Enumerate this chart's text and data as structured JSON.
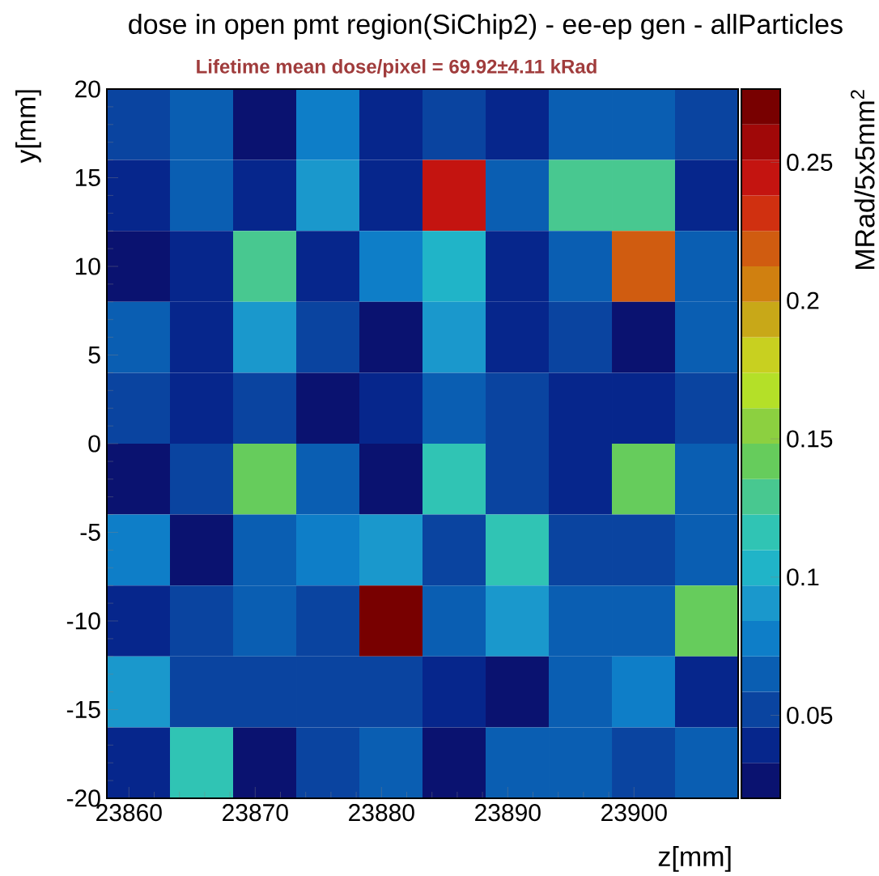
{
  "chart_data": {
    "type": "heatmap",
    "title": "dose in open pmt region(SiChip2) - ee-ep gen - allParticles",
    "subtitle": "Lifetime mean dose/pixel = 69.92±4.11 kRad",
    "xlabel": "z[mm]",
    "ylabel": "y[mm]",
    "clabel": "MRad/5x5mm$^{2}$",
    "x": [
      23860.75,
      23865.75,
      23870.75,
      23875.75,
      23880.75,
      23885.75,
      23890.75,
      23895.75,
      23900.75,
      23905.75
    ],
    "y": [
      18,
      14,
      10,
      6,
      2,
      -2,
      -6,
      -10,
      -14,
      -18
    ],
    "xlim": [
      23858.25,
      23908.25
    ],
    "ylim": [
      -20,
      20
    ],
    "xticks": [
      23860,
      23870,
      23880,
      23890,
      23900
    ],
    "yticks": [
      -20,
      -15,
      -10,
      -5,
      0,
      5,
      10,
      15,
      20
    ],
    "clim": [
      0.02,
      0.2765
    ],
    "cticks": [
      0.05,
      0.1,
      0.15,
      0.2,
      0.25
    ],
    "cells": [
      [
        0.052,
        0.065,
        0.026,
        0.078,
        0.039,
        0.052,
        0.039,
        0.065,
        0.065,
        0.052
      ],
      [
        0.039,
        0.065,
        0.039,
        0.091,
        0.039,
        0.244,
        0.065,
        0.129,
        0.129,
        0.039
      ],
      [
        0.026,
        0.039,
        0.129,
        0.039,
        0.078,
        0.103,
        0.039,
        0.065,
        0.219,
        0.065
      ],
      [
        0.065,
        0.039,
        0.091,
        0.052,
        0.026,
        0.091,
        0.039,
        0.052,
        0.026,
        0.065
      ],
      [
        0.052,
        0.039,
        0.052,
        0.026,
        0.039,
        0.065,
        0.052,
        0.039,
        0.039,
        0.052
      ],
      [
        0.026,
        0.052,
        0.142,
        0.065,
        0.026,
        0.116,
        0.052,
        0.039,
        0.142,
        0.065
      ],
      [
        0.078,
        0.026,
        0.065,
        0.078,
        0.091,
        0.052,
        0.116,
        0.052,
        0.052,
        0.065
      ],
      [
        0.039,
        0.052,
        0.065,
        0.052,
        0.27,
        0.065,
        0.091,
        0.065,
        0.065,
        0.142
      ],
      [
        0.091,
        0.052,
        0.052,
        0.052,
        0.052,
        0.039,
        0.026,
        0.065,
        0.078,
        0.039
      ],
      [
        0.039,
        0.116,
        0.026,
        0.052,
        0.065,
        0.026,
        0.065,
        0.065,
        0.052,
        0.065
      ]
    ]
  }
}
